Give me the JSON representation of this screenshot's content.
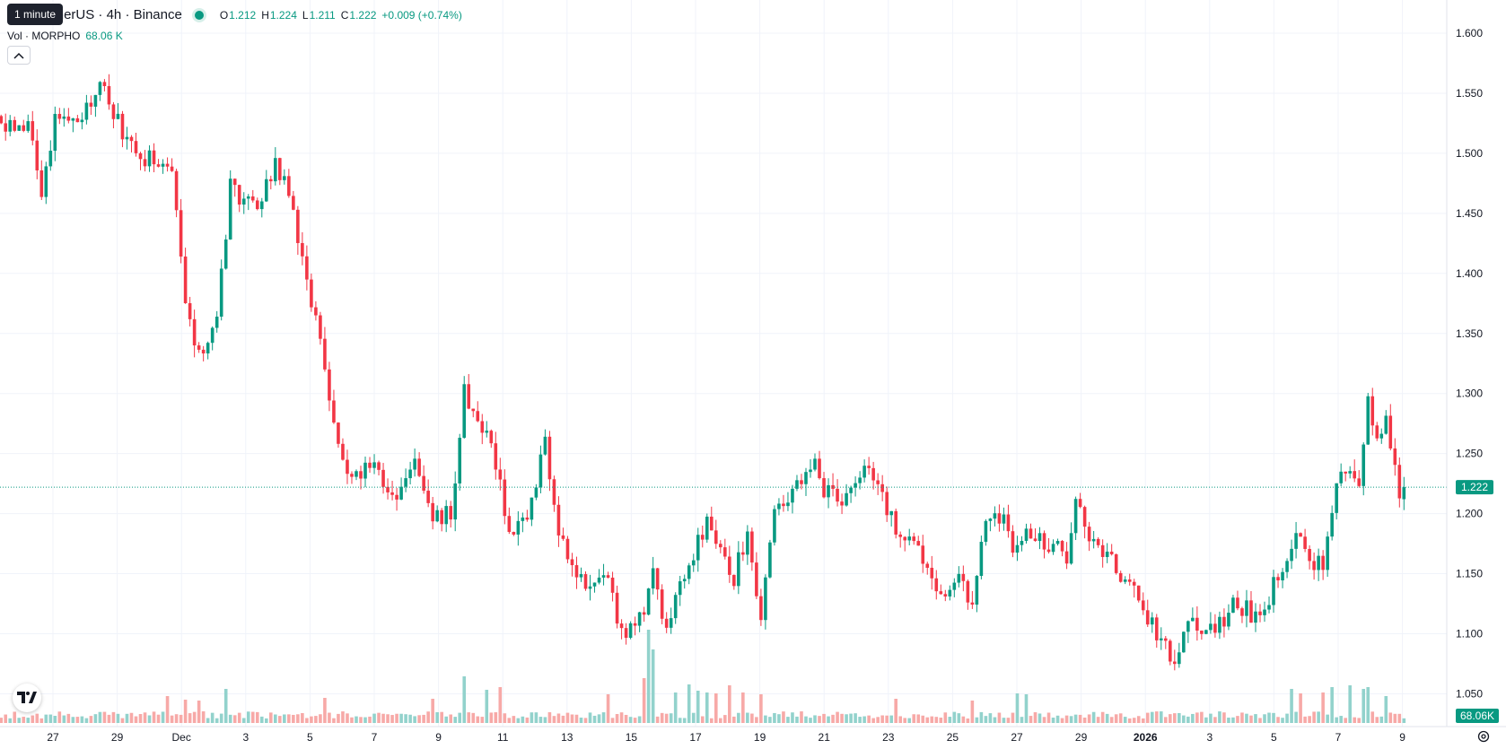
{
  "legend": {
    "title": "HO / TetherUS · 4h · Binance",
    "tooltip": "1 minute",
    "open_label": "O",
    "open": "1.212",
    "high_label": "H",
    "high": "1.224",
    "low_label": "L",
    "low": "1.211",
    "close_label": "C",
    "close": "1.222",
    "change": "+0.009 (+0.74%)"
  },
  "volume_legend": {
    "label": "Vol · MORPHO",
    "value": "68.06 K"
  },
  "colors": {
    "up": "#089981",
    "down": "#f23645",
    "up_volume": "#92d2cc",
    "down_volume": "#f7a9a7",
    "grid": "#f0f3fa"
  },
  "icons": {
    "collapse": "chevron-up-icon",
    "logo": "tradingview-logo-icon",
    "settings": "gear-icon"
  },
  "chart_data": {
    "type": "candlestick",
    "symbol": "MORPHO / TetherUS",
    "interval": "4h",
    "exchange": "Binance",
    "y_axis": {
      "min": 1.025,
      "max": 1.625,
      "ticks": [
        "1.600",
        "1.550",
        "1.500",
        "1.450",
        "1.400",
        "1.350",
        "1.300",
        "1.250",
        "1.200",
        "1.150",
        "1.100",
        "1.050"
      ]
    },
    "x_axis": {
      "ticks": [
        "27",
        "29",
        "Dec",
        "3",
        "5",
        "7",
        "9",
        "11",
        "13",
        "15",
        "17",
        "19",
        "21",
        "23",
        "25",
        "27",
        "29",
        "2026",
        "3",
        "5",
        "7",
        "9"
      ],
      "bold_ticks": [
        "2026"
      ]
    },
    "last_price": "1.222",
    "last_volume": "68.06K",
    "anchors": [
      {
        "c": 0,
        "p": 1.525
      },
      {
        "c": 6,
        "p": 1.52
      },
      {
        "c": 9,
        "p": 1.47
      },
      {
        "c": 12,
        "p": 1.53
      },
      {
        "c": 18,
        "p": 1.53
      },
      {
        "c": 22,
        "p": 1.565
      },
      {
        "c": 24,
        "p": 1.54
      },
      {
        "c": 30,
        "p": 1.5
      },
      {
        "c": 36,
        "p": 1.49
      },
      {
        "c": 38,
        "p": 1.49
      },
      {
        "c": 41,
        "p": 1.37
      },
      {
        "c": 44,
        "p": 1.33
      },
      {
        "c": 48,
        "p": 1.37
      },
      {
        "c": 51,
        "p": 1.47
      },
      {
        "c": 57,
        "p": 1.455
      },
      {
        "c": 61,
        "p": 1.49
      },
      {
        "c": 64,
        "p": 1.47
      },
      {
        "c": 67,
        "p": 1.41
      },
      {
        "c": 70,
        "p": 1.36
      },
      {
        "c": 73,
        "p": 1.29
      },
      {
        "c": 77,
        "p": 1.24
      },
      {
        "c": 84,
        "p": 1.235
      },
      {
        "c": 88,
        "p": 1.21
      },
      {
        "c": 92,
        "p": 1.24
      },
      {
        "c": 96,
        "p": 1.2
      },
      {
        "c": 100,
        "p": 1.2
      },
      {
        "c": 103,
        "p": 1.3
      },
      {
        "c": 108,
        "p": 1.27
      },
      {
        "c": 111,
        "p": 1.23
      },
      {
        "c": 113,
        "p": 1.18
      },
      {
        "c": 117,
        "p": 1.2
      },
      {
        "c": 121,
        "p": 1.26
      },
      {
        "c": 123,
        "p": 1.2
      },
      {
        "c": 127,
        "p": 1.16
      },
      {
        "c": 130,
        "p": 1.14
      },
      {
        "c": 135,
        "p": 1.14
      },
      {
        "c": 138,
        "p": 1.1
      },
      {
        "c": 143,
        "p": 1.125
      },
      {
        "c": 145,
        "p": 1.15
      },
      {
        "c": 148,
        "p": 1.1
      },
      {
        "c": 152,
        "p": 1.15
      },
      {
        "c": 157,
        "p": 1.19
      },
      {
        "c": 160,
        "p": 1.18
      },
      {
        "c": 163,
        "p": 1.145
      },
      {
        "c": 166,
        "p": 1.19
      },
      {
        "c": 169,
        "p": 1.11
      },
      {
        "c": 172,
        "p": 1.2
      },
      {
        "c": 176,
        "p": 1.215
      },
      {
        "c": 181,
        "p": 1.24
      },
      {
        "c": 183,
        "p": 1.215
      },
      {
        "c": 189,
        "p": 1.215
      },
      {
        "c": 193,
        "p": 1.24
      },
      {
        "c": 197,
        "p": 1.2
      },
      {
        "c": 200,
        "p": 1.18
      },
      {
        "c": 203,
        "p": 1.185
      },
      {
        "c": 207,
        "p": 1.145
      },
      {
        "c": 210,
        "p": 1.14
      },
      {
        "c": 214,
        "p": 1.145
      },
      {
        "c": 216,
        "p": 1.12
      },
      {
        "c": 219,
        "p": 1.2
      },
      {
        "c": 222,
        "p": 1.2
      },
      {
        "c": 225,
        "p": 1.175
      },
      {
        "c": 229,
        "p": 1.185
      },
      {
        "c": 234,
        "p": 1.175
      },
      {
        "c": 237,
        "p": 1.165
      },
      {
        "c": 239,
        "p": 1.21
      },
      {
        "c": 242,
        "p": 1.18
      },
      {
        "c": 247,
        "p": 1.16
      },
      {
        "c": 253,
        "p": 1.13
      },
      {
        "c": 258,
        "p": 1.09
      },
      {
        "c": 261,
        "p": 1.08
      },
      {
        "c": 265,
        "p": 1.11
      },
      {
        "c": 270,
        "p": 1.1
      },
      {
        "c": 274,
        "p": 1.13
      },
      {
        "c": 278,
        "p": 1.115
      },
      {
        "c": 282,
        "p": 1.13
      },
      {
        "c": 285,
        "p": 1.16
      },
      {
        "c": 288,
        "p": 1.18
      },
      {
        "c": 292,
        "p": 1.16
      },
      {
        "c": 294,
        "p": 1.16
      },
      {
        "c": 297,
        "p": 1.22
      },
      {
        "c": 300,
        "p": 1.24
      },
      {
        "c": 302,
        "p": 1.225
      },
      {
        "c": 304,
        "p": 1.29
      },
      {
        "c": 306,
        "p": 1.26
      },
      {
        "c": 308,
        "p": 1.28
      },
      {
        "c": 311,
        "p": 1.21
      },
      {
        "c": 312,
        "p": 1.222
      }
    ],
    "volume_spikes": [
      {
        "c": 37,
        "v": 30
      },
      {
        "c": 41,
        "v": 26
      },
      {
        "c": 44,
        "v": 25
      },
      {
        "c": 50,
        "v": 38
      },
      {
        "c": 72,
        "v": 28
      },
      {
        "c": 96,
        "v": 27
      },
      {
        "c": 103,
        "v": 52
      },
      {
        "c": 108,
        "v": 37
      },
      {
        "c": 111,
        "v": 40
      },
      {
        "c": 135,
        "v": 32
      },
      {
        "c": 143,
        "v": 50
      },
      {
        "c": 144,
        "v": 104
      },
      {
        "c": 145,
        "v": 82
      },
      {
        "c": 150,
        "v": 34
      },
      {
        "c": 153,
        "v": 43
      },
      {
        "c": 155,
        "v": 36
      },
      {
        "c": 157,
        "v": 34
      },
      {
        "c": 159,
        "v": 33
      },
      {
        "c": 162,
        "v": 42
      },
      {
        "c": 165,
        "v": 34
      },
      {
        "c": 169,
        "v": 32
      },
      {
        "c": 199,
        "v": 27
      },
      {
        "c": 216,
        "v": 25
      },
      {
        "c": 226,
        "v": 33
      },
      {
        "c": 228,
        "v": 32
      },
      {
        "c": 287,
        "v": 38
      },
      {
        "c": 289,
        "v": 33
      },
      {
        "c": 294,
        "v": 34
      },
      {
        "c": 296,
        "v": 40
      },
      {
        "c": 300,
        "v": 42
      },
      {
        "c": 303,
        "v": 38
      },
      {
        "c": 304,
        "v": 40
      },
      {
        "c": 308,
        "v": 30
      }
    ]
  }
}
